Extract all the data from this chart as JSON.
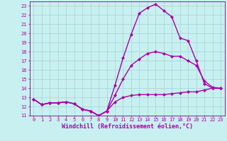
{
  "xlabel": "Windchill (Refroidissement éolien,°C)",
  "background_color": "#c8f0f0",
  "grid_color": "#a8d8d8",
  "line_color": "#aa00aa",
  "spine_color": "#800080",
  "xlim": [
    -0.5,
    23.5
  ],
  "ylim": [
    11,
    23.5
  ],
  "xticks": [
    0,
    1,
    2,
    3,
    4,
    5,
    6,
    7,
    8,
    9,
    10,
    11,
    12,
    13,
    14,
    15,
    16,
    17,
    18,
    19,
    20,
    21,
    22,
    23
  ],
  "yticks": [
    11,
    12,
    13,
    14,
    15,
    16,
    17,
    18,
    19,
    20,
    21,
    22,
    23
  ],
  "series": [
    {
      "x": [
        0,
        1,
        2,
        3,
        4,
        5,
        6,
        7,
        8,
        9,
        10,
        11,
        12,
        13,
        14,
        15,
        16,
        17,
        18,
        19,
        20,
        21,
        22,
        23
      ],
      "y": [
        12.8,
        12.2,
        12.4,
        12.4,
        12.5,
        12.3,
        11.7,
        11.5,
        11.0,
        11.5,
        14.3,
        17.3,
        19.9,
        22.2,
        22.8,
        23.2,
        22.5,
        21.8,
        19.5,
        19.2,
        17.0,
        14.5,
        14.0,
        14.0
      ]
    },
    {
      "x": [
        0,
        1,
        2,
        3,
        4,
        5,
        6,
        7,
        8,
        9,
        10,
        11,
        12,
        13,
        14,
        15,
        16,
        17,
        18,
        19,
        20,
        21,
        22,
        23
      ],
      "y": [
        12.8,
        12.2,
        12.4,
        12.4,
        12.5,
        12.3,
        11.7,
        11.5,
        11.0,
        11.5,
        13.2,
        15.0,
        16.5,
        17.2,
        17.8,
        18.0,
        17.8,
        17.5,
        17.5,
        17.0,
        16.5,
        14.8,
        14.1,
        14.0
      ]
    },
    {
      "x": [
        0,
        1,
        2,
        3,
        4,
        5,
        6,
        7,
        8,
        9,
        10,
        11,
        12,
        13,
        14,
        15,
        16,
        17,
        18,
        19,
        20,
        21,
        22,
        23
      ],
      "y": [
        12.8,
        12.2,
        12.4,
        12.4,
        12.5,
        12.3,
        11.7,
        11.5,
        11.0,
        11.5,
        12.5,
        13.0,
        13.2,
        13.3,
        13.3,
        13.3,
        13.3,
        13.4,
        13.5,
        13.6,
        13.6,
        13.8,
        14.0,
        14.0
      ]
    }
  ],
  "marker": "D",
  "marker_size": 2,
  "line_width": 1.0,
  "tick_fontsize": 5,
  "label_fontsize": 6
}
